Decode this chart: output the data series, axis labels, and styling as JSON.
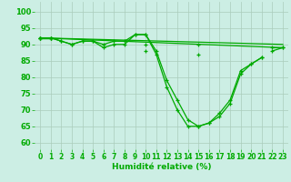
{
  "xlabel": "Humidité relative (%)",
  "background_color": "#cceee4",
  "grid_color": "#aaccbb",
  "line_color": "#00aa00",
  "xlim": [
    -0.5,
    23.5
  ],
  "ylim": [
    58,
    103
  ],
  "yticks": [
    60,
    65,
    70,
    75,
    80,
    85,
    90,
    95,
    100
  ],
  "xticks": [
    0,
    1,
    2,
    3,
    4,
    5,
    6,
    7,
    8,
    9,
    10,
    11,
    12,
    13,
    14,
    15,
    16,
    17,
    18,
    19,
    20,
    21,
    22,
    23
  ],
  "series": [
    [
      92,
      92,
      91,
      90,
      91,
      91,
      89,
      90,
      90,
      93,
      93,
      87,
      77,
      70,
      65,
      65,
      66,
      68,
      72,
      81,
      84,
      86,
      null,
      null
    ],
    [
      92,
      92,
      91,
      90,
      91,
      91,
      90,
      91,
      91,
      93,
      93,
      88,
      79,
      73,
      67,
      65,
      66,
      69,
      73,
      82,
      84,
      86,
      null,
      null
    ],
    [
      92,
      92,
      null,
      null,
      null,
      null,
      null,
      null,
      null,
      null,
      90,
      null,
      null,
      null,
      null,
      90,
      null,
      null,
      null,
      null,
      null,
      null,
      89,
      89
    ],
    [
      92,
      92,
      null,
      null,
      null,
      null,
      null,
      null,
      null,
      null,
      88,
      null,
      null,
      null,
      null,
      87,
      null,
      null,
      null,
      null,
      null,
      null,
      88,
      89
    ]
  ]
}
